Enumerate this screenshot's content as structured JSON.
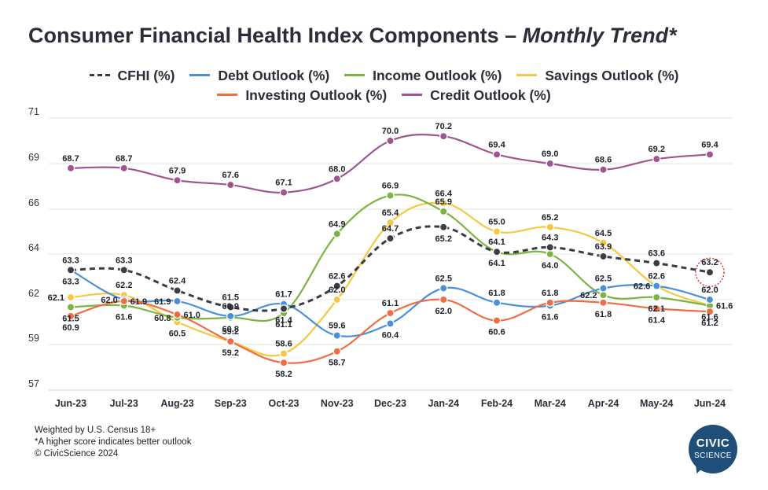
{
  "title_main": "Consumer Financial Health Index Components – ",
  "title_italic": "Monthly Trend*",
  "footnotes": {
    "line1": "Weighted by U.S. Census 18+",
    "line2": "*A higher score indicates better outlook",
    "line3": "© CivicScience 2024"
  },
  "logo": {
    "line1": "CIVIC",
    "line2": "SCIENCE",
    "color": "#1f4e79"
  },
  "chart_data": {
    "type": "line",
    "categories": [
      "Jun-23",
      "Jul-23",
      "Aug-23",
      "Sep-23",
      "Oct-23",
      "Nov-23",
      "Dec-23",
      "Jan-24",
      "Feb-24",
      "Mar-24",
      "Apr-24",
      "May-24",
      "Jun-24"
    ],
    "y_ticks": [
      71,
      69,
      66,
      64,
      62,
      59,
      57
    ],
    "ylim": [
      56.5,
      71.2
    ],
    "grid": true,
    "legend_position": "top",
    "highlight": {
      "series": "CFHI (%)",
      "category": "Jun-24"
    },
    "series": [
      {
        "name": "CFHI (%)",
        "color": "#3a3d44",
        "dashed": true,
        "values": [
          63.3,
          63.3,
          62.4,
          61.5,
          61.4,
          62.6,
          64.7,
          65.2,
          64.1,
          64.3,
          63.9,
          63.6,
          63.2
        ],
        "label_pos": [
          "above",
          "above",
          "above",
          "above",
          "below",
          "above",
          "above",
          "below",
          "above",
          "above",
          "above",
          "above",
          "above"
        ]
      },
      {
        "name": "Debt Outlook (%)",
        "color": "#4a90d9",
        "dashed": false,
        "values": [
          63.3,
          62.0,
          61.9,
          60.9,
          61.7,
          59.6,
          60.4,
          62.5,
          61.8,
          61.6,
          62.5,
          62.6,
          62.0
        ],
        "label_pos": [
          "below",
          "left",
          "left",
          "above",
          "above",
          "above",
          "below",
          "above",
          "above",
          "below",
          "above",
          "left",
          "above"
        ]
      },
      {
        "name": "Income Outlook (%)",
        "color": "#7db343",
        "dashed": false,
        "values": [
          61.5,
          61.6,
          60.8,
          60.8,
          61.1,
          64.9,
          66.9,
          65.9,
          64.1,
          64.0,
          62.2,
          62.1,
          61.6
        ],
        "label_pos": [
          "below",
          "below",
          "left",
          "below",
          "below",
          "above",
          "above",
          "above",
          "below",
          "below",
          "left",
          "below",
          "below"
        ]
      },
      {
        "name": "Savings Outlook (%)",
        "color": "#f5c842",
        "dashed": false,
        "values": [
          62.1,
          62.2,
          60.5,
          59.2,
          58.6,
          62.0,
          65.4,
          66.4,
          65.0,
          65.2,
          64.5,
          62.6,
          61.6
        ],
        "label_pos": [
          "left",
          "above",
          "below",
          "below",
          "above",
          "above",
          "above",
          "above",
          "above",
          "above",
          "above",
          "above",
          "right"
        ]
      },
      {
        "name": "Investing Outlook (%)",
        "color": "#f06d43",
        "dashed": false,
        "values": [
          60.9,
          61.9,
          61.0,
          59.2,
          58.2,
          58.7,
          61.1,
          62.0,
          60.6,
          61.8,
          61.8,
          61.4,
          61.2
        ],
        "label_pos": [
          "below",
          "right",
          "right",
          "above",
          "below",
          "below",
          "above",
          "below",
          "below",
          "above",
          "below",
          "below",
          "below"
        ]
      },
      {
        "name": "Credit Outlook (%)",
        "color": "#a0558f",
        "dashed": false,
        "values": [
          68.7,
          68.7,
          67.9,
          67.6,
          67.1,
          68.0,
          70.0,
          70.2,
          69.4,
          69.0,
          68.6,
          69.2,
          69.4
        ],
        "label_pos": [
          "above",
          "above",
          "above",
          "above",
          "above",
          "above",
          "above",
          "above",
          "above",
          "above",
          "above",
          "above",
          "above"
        ]
      }
    ]
  }
}
